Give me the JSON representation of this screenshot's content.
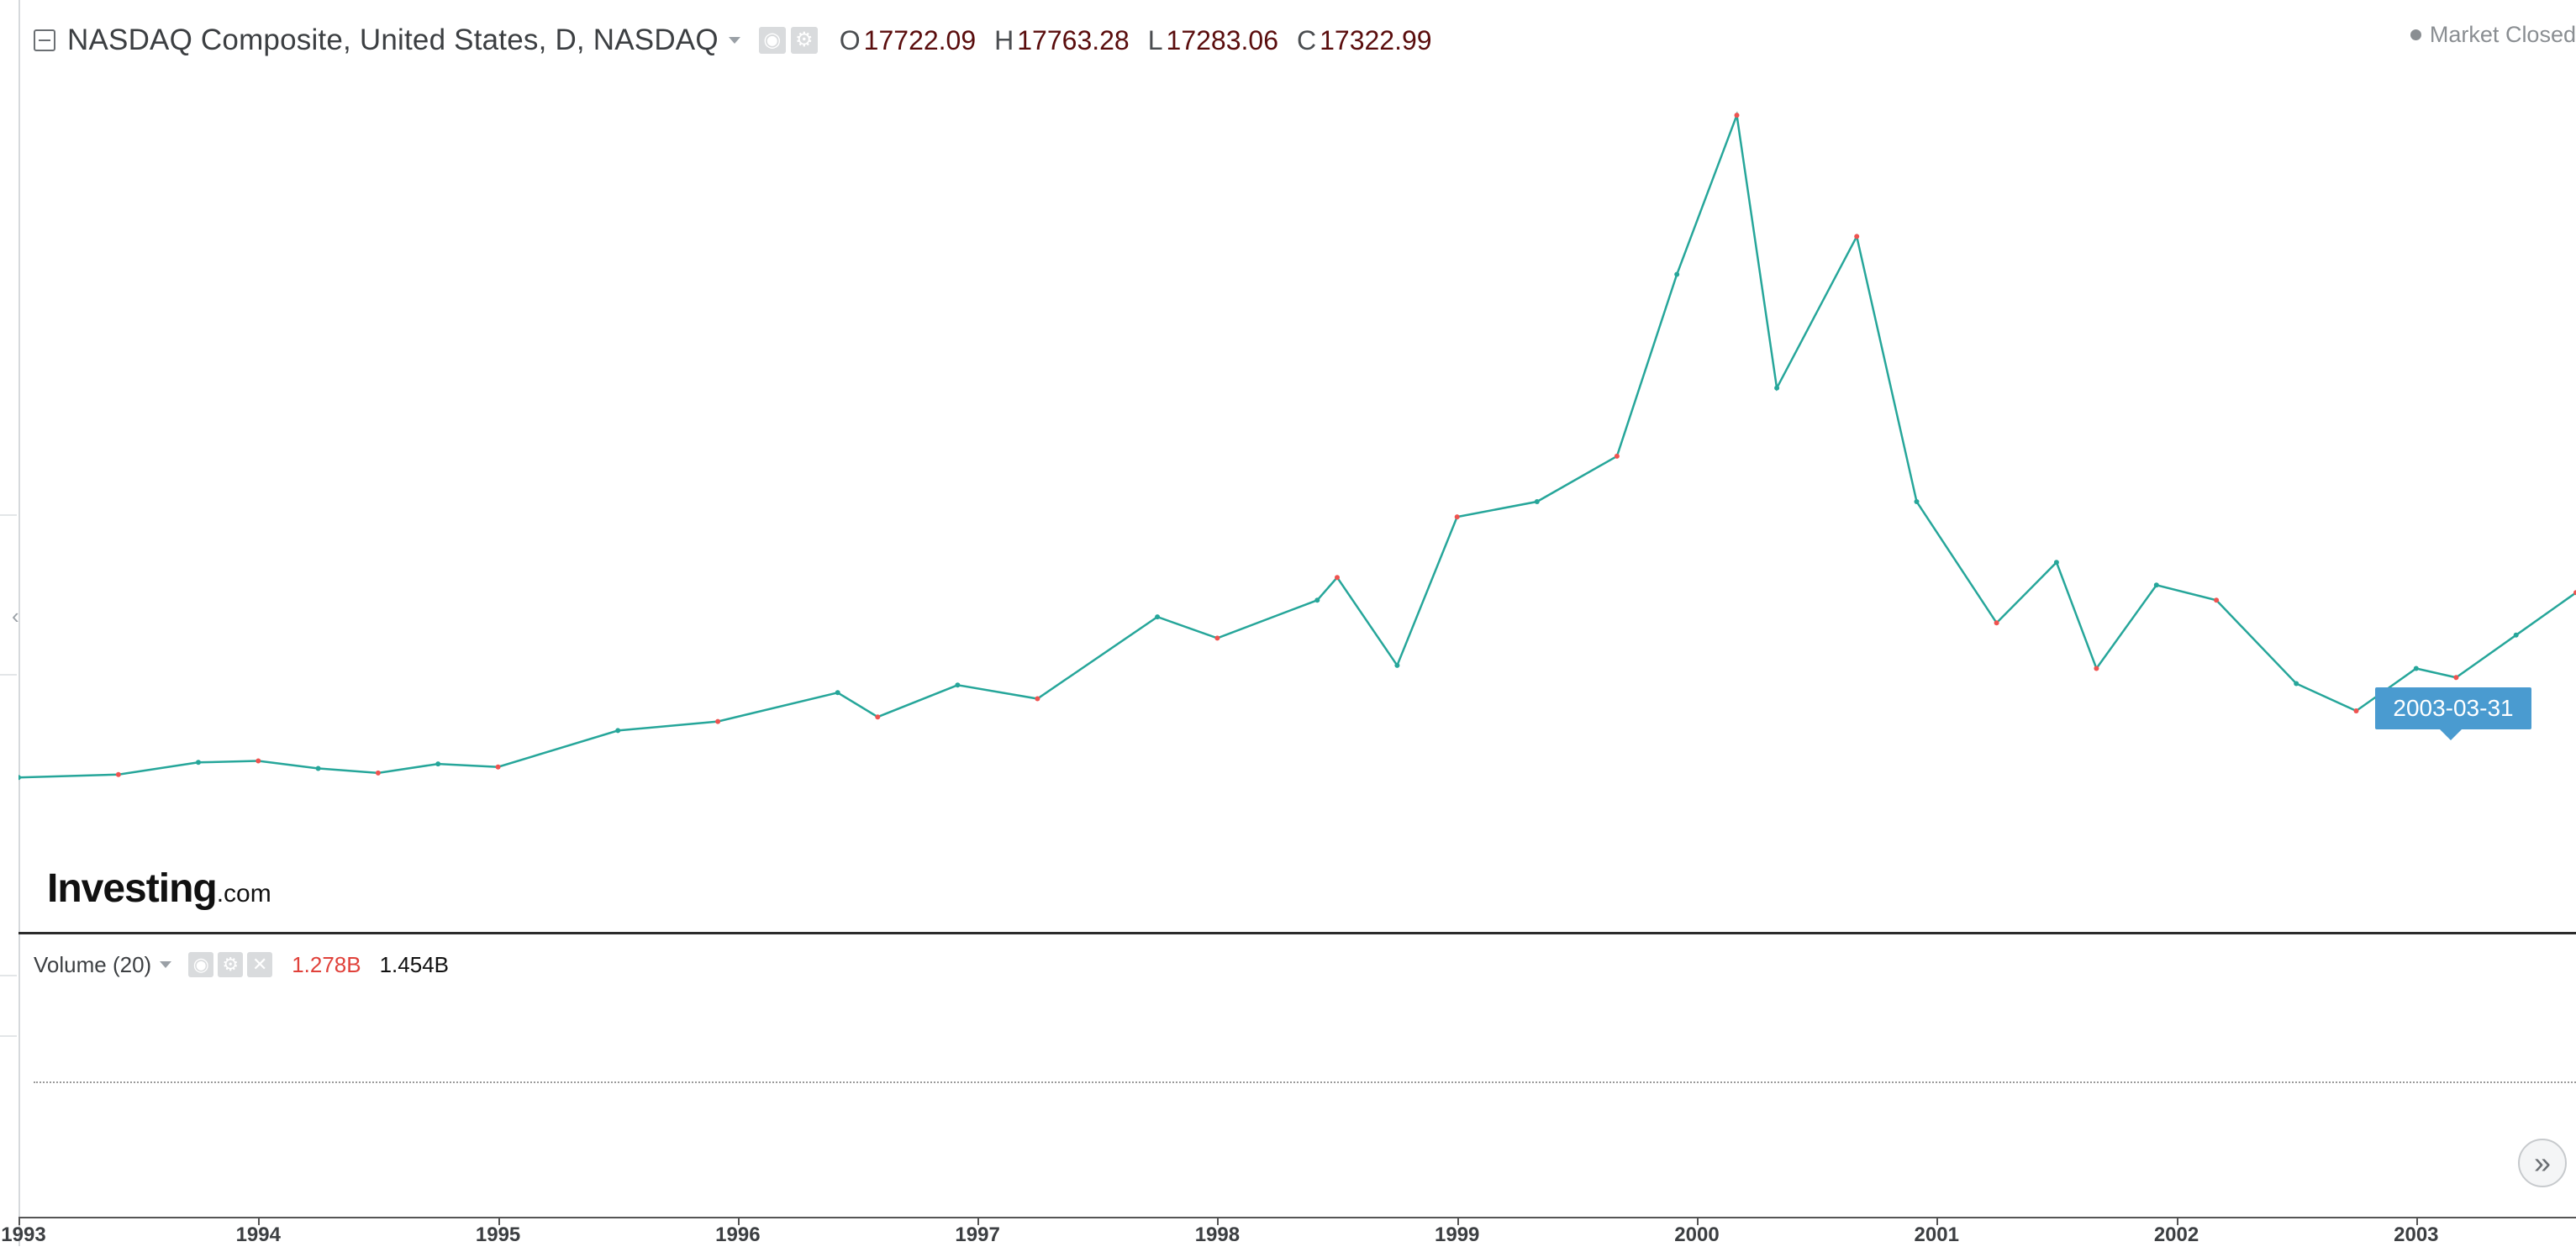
{
  "legend": {
    "symbol": "NASDAQ Composite, United States, D, NASDAQ",
    "open_key": "O",
    "open": "17722.09",
    "high_key": "H",
    "high": "17763.28",
    "low_key": "L",
    "low": "17283.06",
    "close_key": "C",
    "close": "17322.99",
    "icons": [
      "eye-icon",
      "gear-icon"
    ]
  },
  "market_status": "Market Closed",
  "volume": {
    "title": "Volume (20)",
    "value_1": "1.278B",
    "value_2": "1.454B",
    "icons": [
      "eye-icon",
      "gear-icon",
      "close-icon"
    ]
  },
  "tooltip_date": "2003-03-31",
  "logo": {
    "main": "Investing",
    "suffix": ".com"
  },
  "colors": {
    "up": "#26a69a",
    "down": "#ef5350",
    "tooltip": "#4a9bd0"
  },
  "chart_data": {
    "type": "line",
    "title": "",
    "xlabel": "",
    "ylabel": "",
    "x_ticks": [
      "1993",
      "1994",
      "1995",
      "1996",
      "1997",
      "1998",
      "1999",
      "2000",
      "2001",
      "2002",
      "2003"
    ],
    "xlim": [
      "1993-01",
      "2003-09"
    ],
    "ylim": [
      0,
      5200
    ],
    "grid": false,
    "series": [
      {
        "values": [
          {
            "x": "1993-01",
            "y": 680
          },
          {
            "x": "1993-06",
            "y": 700
          },
          {
            "x": "1993-10",
            "y": 780
          },
          {
            "x": "1994-01",
            "y": 790
          },
          {
            "x": "1994-04",
            "y": 740
          },
          {
            "x": "1994-07",
            "y": 710
          },
          {
            "x": "1994-10",
            "y": 770
          },
          {
            "x": "1995-01",
            "y": 750
          },
          {
            "x": "1995-07",
            "y": 990
          },
          {
            "x": "1995-12",
            "y": 1050
          },
          {
            "x": "1996-06",
            "y": 1240
          },
          {
            "x": "1996-08",
            "y": 1080
          },
          {
            "x": "1996-12",
            "y": 1290
          },
          {
            "x": "1997-04",
            "y": 1200
          },
          {
            "x": "1997-10",
            "y": 1740
          },
          {
            "x": "1998-01",
            "y": 1600
          },
          {
            "x": "1998-06",
            "y": 1850
          },
          {
            "x": "1998-07",
            "y": 2000
          },
          {
            "x": "1998-10",
            "y": 1420
          },
          {
            "x": "1999-01",
            "y": 2400
          },
          {
            "x": "1999-05",
            "y": 2500
          },
          {
            "x": "1999-09",
            "y": 2800
          },
          {
            "x": "1999-12",
            "y": 4000
          },
          {
            "x": "2000-03",
            "y": 5050
          },
          {
            "x": "2000-05",
            "y": 3250
          },
          {
            "x": "2000-09",
            "y": 4250
          },
          {
            "x": "2000-12",
            "y": 2500
          },
          {
            "x": "2001-04",
            "y": 1700
          },
          {
            "x": "2001-07",
            "y": 2100
          },
          {
            "x": "2001-09",
            "y": 1400
          },
          {
            "x": "2001-12",
            "y": 1950
          },
          {
            "x": "2002-03",
            "y": 1850
          },
          {
            "x": "2002-07",
            "y": 1300
          },
          {
            "x": "2002-10",
            "y": 1120
          },
          {
            "x": "2003-01",
            "y": 1400
          },
          {
            "x": "2003-03",
            "y": 1340
          },
          {
            "x": "2003-06",
            "y": 1620
          },
          {
            "x": "2003-09",
            "y": 1900
          }
        ]
      }
    ],
    "volume_series": [],
    "legend": "none"
  }
}
